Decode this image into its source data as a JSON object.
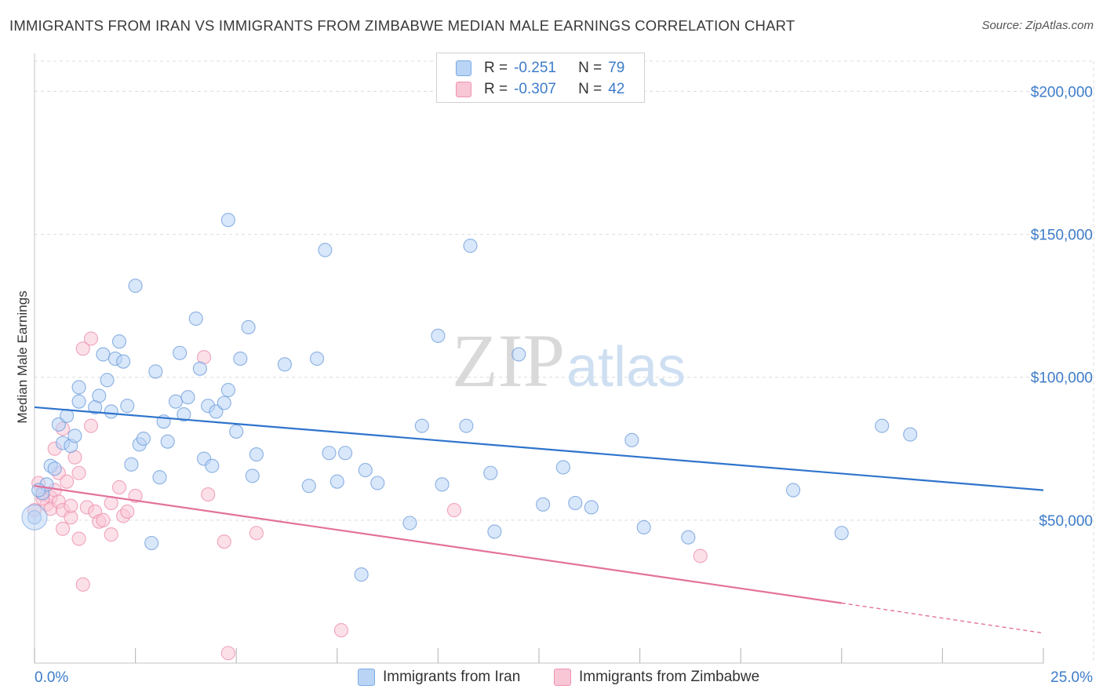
{
  "title": "IMMIGRANTS FROM IRAN VS IMMIGRANTS FROM ZIMBABWE MEDIAN MALE EARNINGS CORRELATION CHART",
  "source": "Source: ZipAtlas.com",
  "watermark": {
    "zip": "ZIP",
    "atlas": "atlas"
  },
  "legend": {
    "r_label": "R =",
    "n_label": "N =",
    "rows": [
      {
        "r": "-0.251",
        "n": "79",
        "fill": "#b9d4f5",
        "stroke": "#7aaae6"
      },
      {
        "r": "-0.307",
        "n": "42",
        "fill": "#f9c6d6",
        "stroke": "#ee93b2"
      }
    ]
  },
  "colors": {
    "iran_fill": "#b9d4f5",
    "iran_stroke": "#6f9fdc",
    "iran_line": "#2f74cc",
    "zim_fill": "#f9c6d6",
    "zim_stroke": "#ec8fae",
    "zim_line": "#e3729b",
    "grid": "#dcdcdc",
    "axis_text": "#3d7cc9"
  },
  "chart_data": {
    "type": "scatter",
    "title": "IMMIGRANTS FROM IRAN VS IMMIGRANTS FROM ZIMBABWE MEDIAN MALE EARNINGS CORRELATION CHART",
    "xlabel": "",
    "ylabel": "Median Male Earnings",
    "xlim": [
      0,
      25
    ],
    "ylim": [
      0,
      210000
    ],
    "x_tick_labels": [
      "0.0%",
      "25.0%"
    ],
    "y_ticks": [
      50000,
      100000,
      150000,
      200000
    ],
    "y_tick_labels": [
      "$50,000",
      "$100,000",
      "$150,000",
      "$200,000"
    ],
    "series": [
      {
        "name": "Immigrants from Iran",
        "r": -0.251,
        "n": 79,
        "trend": {
          "x": [
            0,
            25
          ],
          "y": [
            89500,
            60500
          ]
        },
        "points": [
          [
            0.0,
            51000
          ],
          [
            0.2,
            59500
          ],
          [
            0.3,
            62500
          ],
          [
            0.4,
            69000
          ],
          [
            0.5,
            68000
          ],
          [
            0.6,
            83500
          ],
          [
            0.7,
            77000
          ],
          [
            0.8,
            86500
          ],
          [
            0.9,
            76000
          ],
          [
            1.0,
            79500
          ],
          [
            1.1,
            91500
          ],
          [
            1.1,
            96500
          ],
          [
            1.5,
            89500
          ],
          [
            1.6,
            93500
          ],
          [
            1.7,
            108000
          ],
          [
            1.8,
            99000
          ],
          [
            1.9,
            88000
          ],
          [
            2.0,
            106500
          ],
          [
            2.1,
            112500
          ],
          [
            2.2,
            105500
          ],
          [
            2.3,
            90000
          ],
          [
            2.4,
            69500
          ],
          [
            2.5,
            132000
          ],
          [
            2.6,
            76500
          ],
          [
            2.7,
            78500
          ],
          [
            2.9,
            42000
          ],
          [
            3.0,
            102000
          ],
          [
            3.1,
            65000
          ],
          [
            3.2,
            84500
          ],
          [
            3.3,
            77500
          ],
          [
            3.5,
            91500
          ],
          [
            3.6,
            108500
          ],
          [
            3.7,
            87000
          ],
          [
            3.8,
            93000
          ],
          [
            4.0,
            120500
          ],
          [
            4.1,
            103000
          ],
          [
            4.2,
            71500
          ],
          [
            4.3,
            90000
          ],
          [
            4.4,
            69000
          ],
          [
            4.5,
            88000
          ],
          [
            4.7,
            91000
          ],
          [
            4.8,
            95500
          ],
          [
            4.8,
            155000
          ],
          [
            5.0,
            81000
          ],
          [
            5.1,
            106500
          ],
          [
            5.3,
            117500
          ],
          [
            5.4,
            65500
          ],
          [
            5.5,
            73000
          ],
          [
            6.2,
            104500
          ],
          [
            6.8,
            62000
          ],
          [
            7.0,
            106500
          ],
          [
            7.2,
            144500
          ],
          [
            7.3,
            73500
          ],
          [
            7.5,
            63500
          ],
          [
            7.7,
            73500
          ],
          [
            8.1,
            31000
          ],
          [
            8.2,
            67500
          ],
          [
            8.5,
            63000
          ],
          [
            9.3,
            49000
          ],
          [
            9.6,
            83000
          ],
          [
            10.0,
            114500
          ],
          [
            10.1,
            62500
          ],
          [
            10.7,
            83000
          ],
          [
            10.8,
            146000
          ],
          [
            11.3,
            66500
          ],
          [
            11.4,
            46000
          ],
          [
            12.0,
            108000
          ],
          [
            12.6,
            55500
          ],
          [
            13.1,
            68500
          ],
          [
            13.4,
            56000
          ],
          [
            13.8,
            54500
          ],
          [
            14.8,
            78000
          ],
          [
            15.1,
            47500
          ],
          [
            16.2,
            44000
          ],
          [
            18.8,
            60500
          ],
          [
            20.0,
            45500
          ],
          [
            21.0,
            83000
          ],
          [
            21.7,
            80000
          ],
          [
            0.1,
            60500
          ]
        ]
      },
      {
        "name": "Immigrants from Zimbabwe",
        "r": -0.307,
        "n": 42,
        "trend": {
          "x": [
            0,
            20
          ],
          "y": [
            62000,
            21000
          ]
        },
        "trend_dashed": {
          "x": [
            20,
            25
          ],
          "y": [
            21000,
            10500
          ]
        },
        "points": [
          [
            0.0,
            53500
          ],
          [
            0.1,
            63000
          ],
          [
            0.2,
            59000
          ],
          [
            0.3,
            55500
          ],
          [
            0.4,
            58000
          ],
          [
            0.4,
            54000
          ],
          [
            0.5,
            60500
          ],
          [
            0.5,
            75000
          ],
          [
            0.6,
            56500
          ],
          [
            0.6,
            66500
          ],
          [
            0.7,
            53500
          ],
          [
            0.7,
            47000
          ],
          [
            0.7,
            82000
          ],
          [
            0.8,
            63500
          ],
          [
            0.9,
            51000
          ],
          [
            0.9,
            55000
          ],
          [
            1.0,
            72000
          ],
          [
            1.1,
            43500
          ],
          [
            1.1,
            66500
          ],
          [
            1.2,
            27500
          ],
          [
            1.2,
            110000
          ],
          [
            1.3,
            54500
          ],
          [
            1.4,
            113500
          ],
          [
            1.4,
            83000
          ],
          [
            1.5,
            53000
          ],
          [
            1.6,
            49500
          ],
          [
            1.7,
            50000
          ],
          [
            1.9,
            45000
          ],
          [
            1.9,
            56000
          ],
          [
            2.1,
            61500
          ],
          [
            2.2,
            51500
          ],
          [
            2.3,
            53000
          ],
          [
            2.5,
            58500
          ],
          [
            4.2,
            107000
          ],
          [
            4.3,
            59000
          ],
          [
            4.7,
            42500
          ],
          [
            4.8,
            3500
          ],
          [
            5.5,
            45500
          ],
          [
            7.6,
            11500
          ],
          [
            10.4,
            53500
          ],
          [
            16.5,
            37500
          ],
          [
            0.2,
            57500
          ]
        ]
      }
    ]
  }
}
